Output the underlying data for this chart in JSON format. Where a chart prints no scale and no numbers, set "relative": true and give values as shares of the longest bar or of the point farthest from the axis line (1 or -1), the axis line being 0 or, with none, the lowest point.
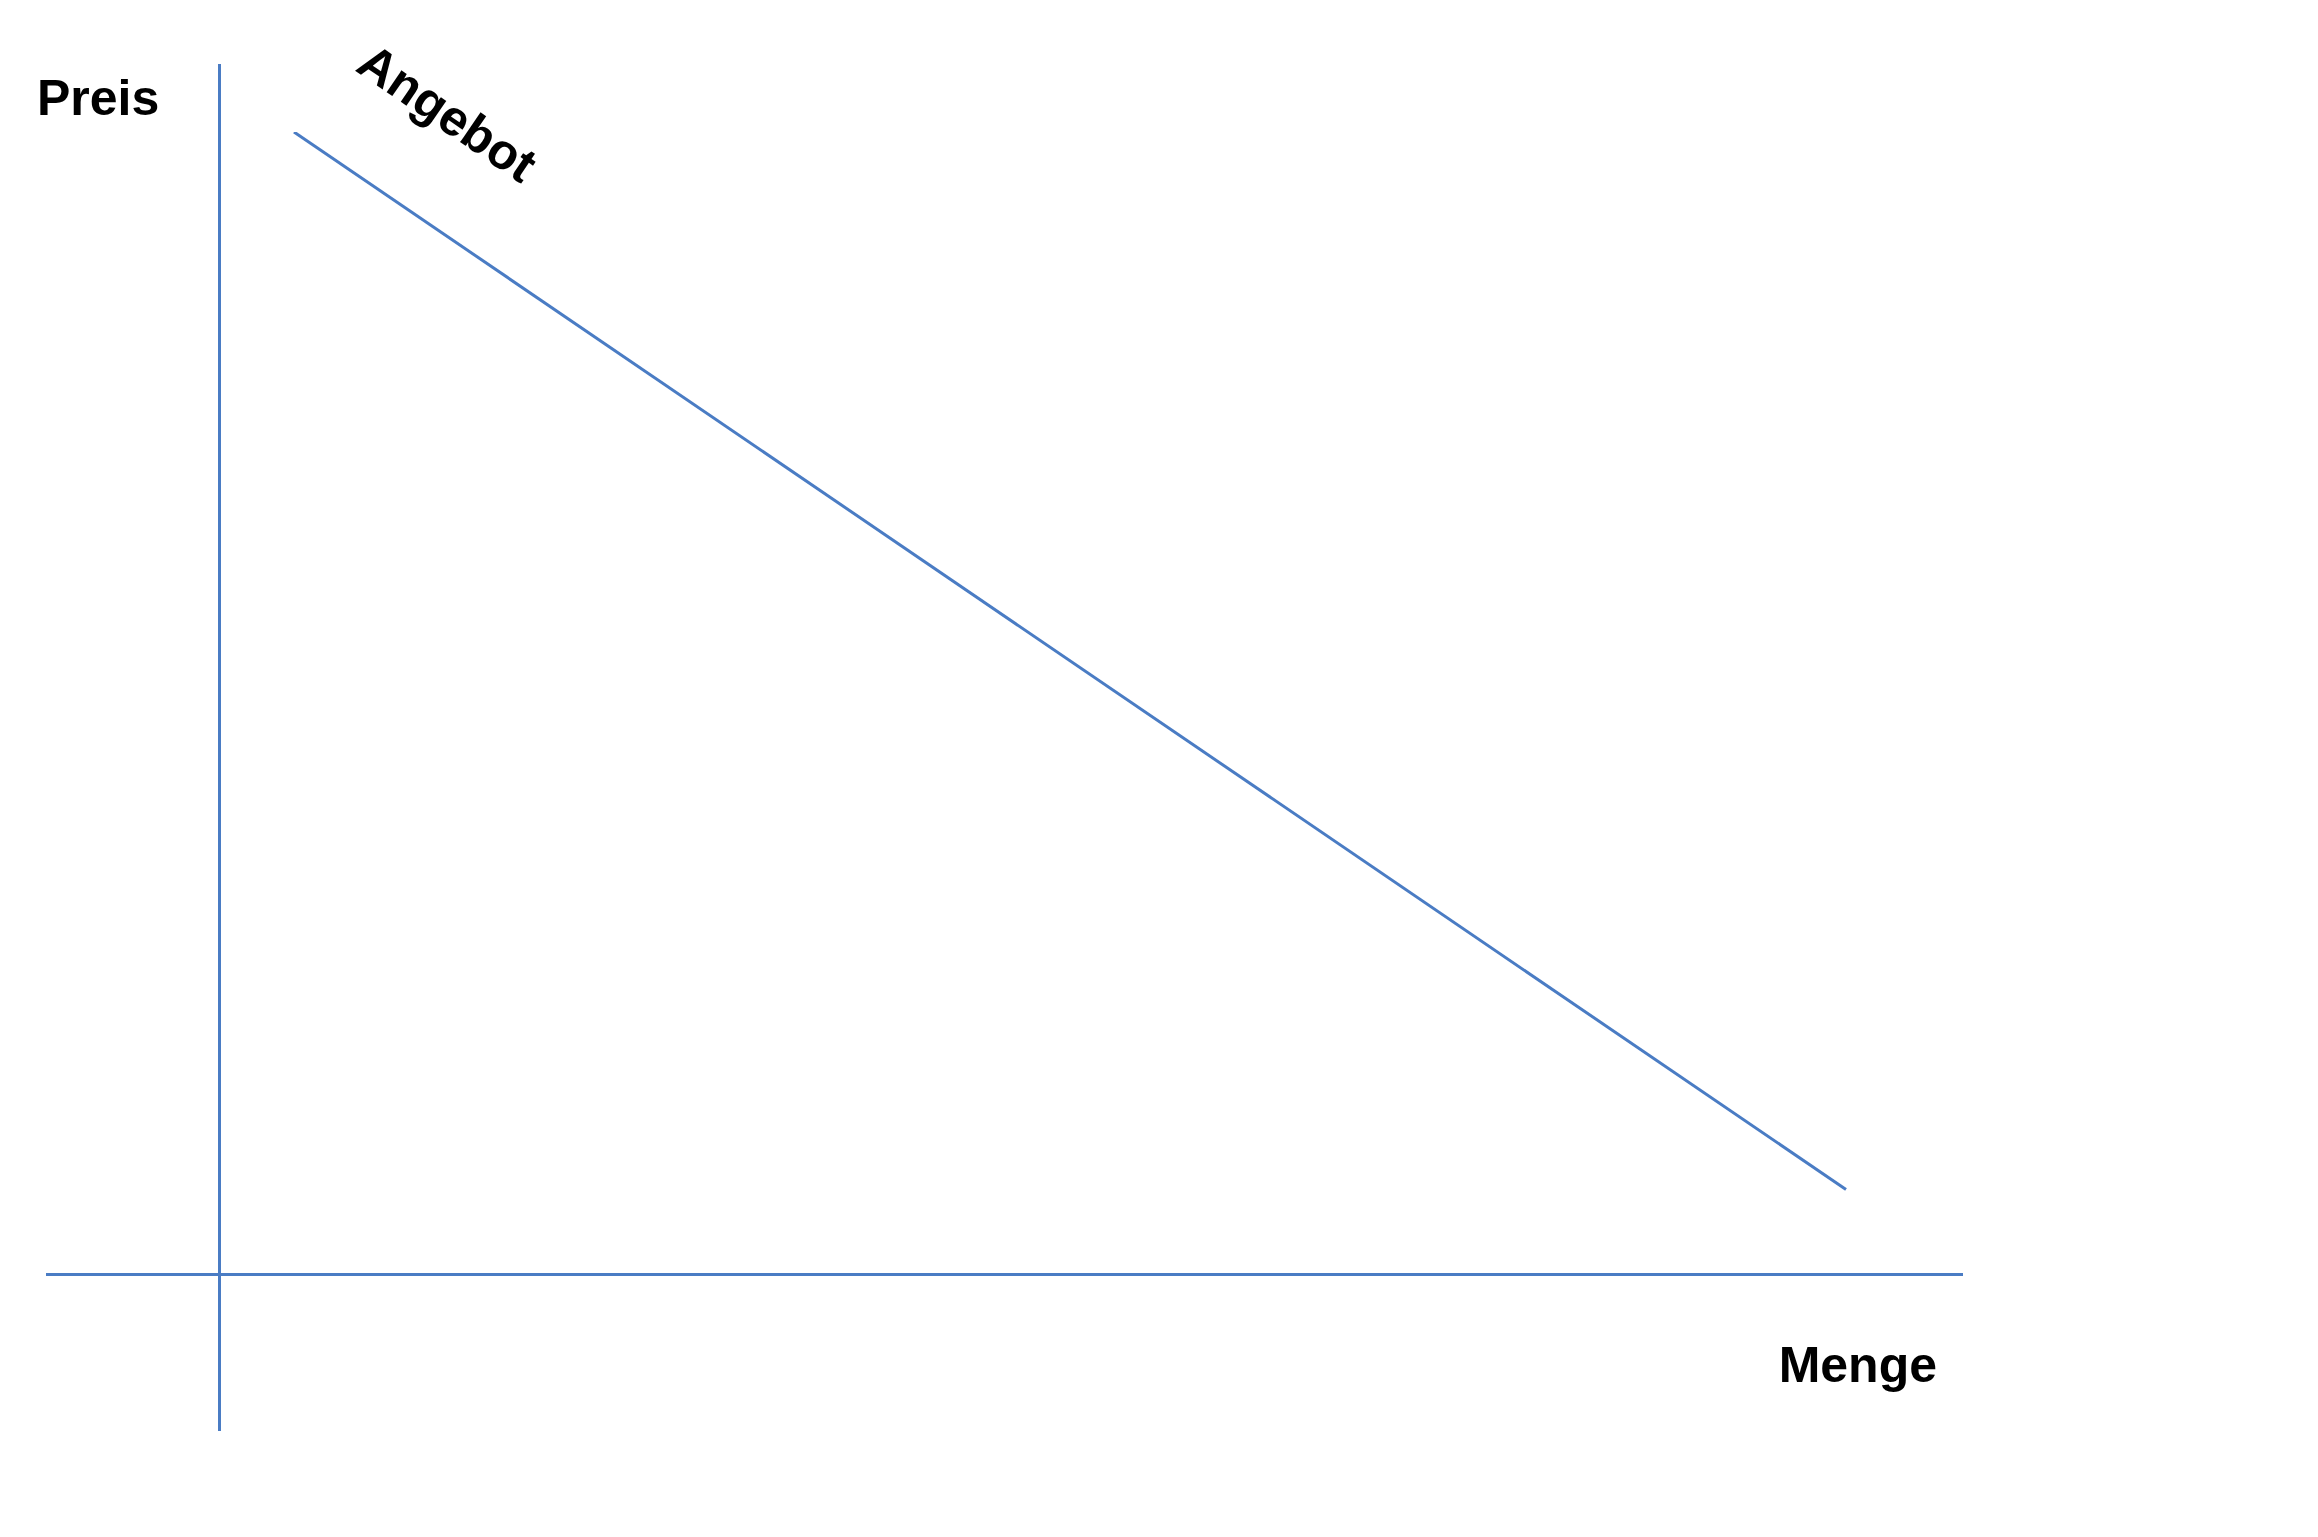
{
  "chart_data": {
    "type": "line",
    "relative": true,
    "xlabel": "Menge",
    "ylabel": "Preis",
    "categories": [
      null,
      null
    ],
    "series": [
      {
        "name": "Angebot",
        "color": "#4a7cc4",
        "values": [
          1,
          0.074
        ]
      }
    ],
    "legend": false,
    "grid": false,
    "marker": "none"
  }
}
